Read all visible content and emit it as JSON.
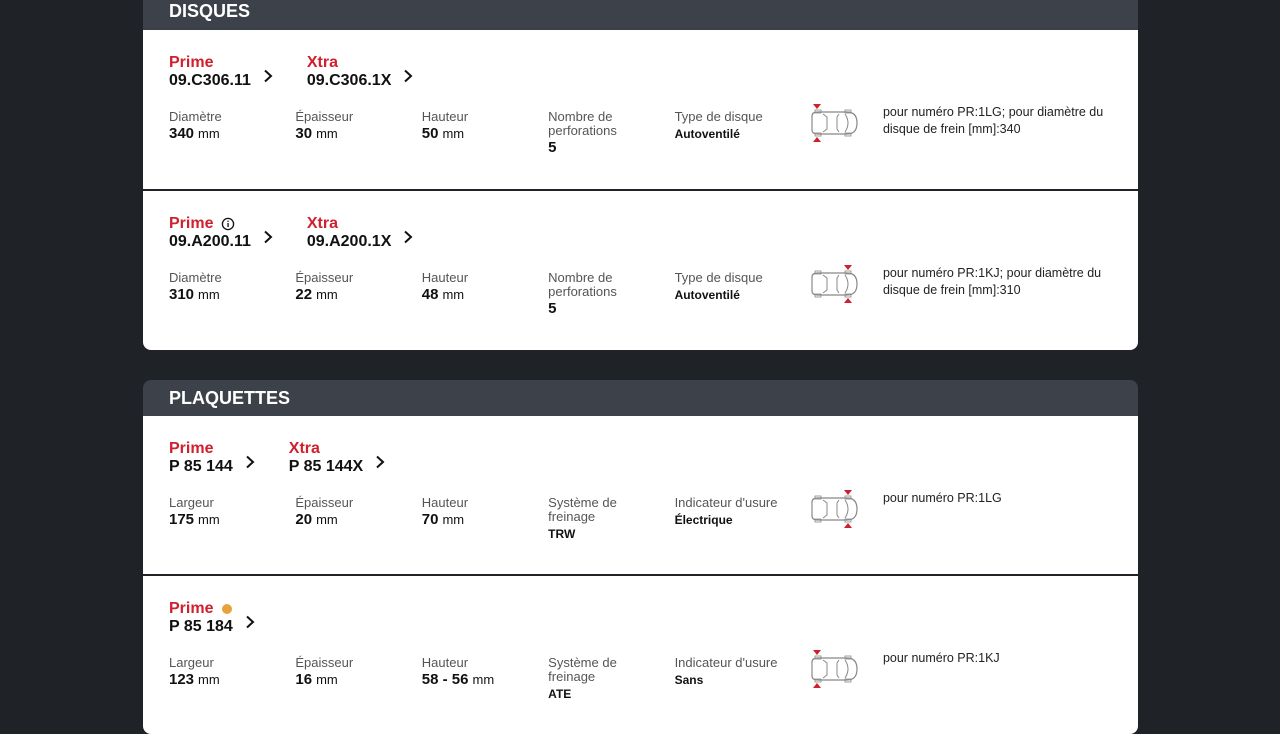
{
  "sections": [
    {
      "title": "DISQUES",
      "items": [
        {
          "refs": [
            {
              "brand": "Prime",
              "number": "09.C306.11"
            },
            {
              "brand": "Xtra",
              "number": "09.C306.1X"
            }
          ],
          "specs": [
            {
              "label": "Diamètre",
              "value": 340,
              "unit": "mm"
            },
            {
              "label": "Épaisseur",
              "value": 30,
              "unit": "mm"
            },
            {
              "label": "Hauteur",
              "value": 50,
              "unit": "mm"
            },
            {
              "label": "Nombre de perforations",
              "value": 5
            },
            {
              "label": "Type de disque",
              "value": "Autoventilé"
            }
          ],
          "note": "pour numéro PR:1LG; pour diamètre du disque de frein [mm]:340"
        },
        {
          "refs": [
            {
              "brand": "Prime",
              "number": "09.A200.11"
            },
            {
              "brand": "Xtra",
              "number": "09.A200.1X"
            }
          ],
          "specs": [
            {
              "label": "Diamètre",
              "value": 310,
              "unit": "mm"
            },
            {
              "label": "Épaisseur",
              "value": 22,
              "unit": "mm"
            },
            {
              "label": "Hauteur",
              "value": 48,
              "unit": "mm"
            },
            {
              "label": "Nombre de perforations",
              "value": 5
            },
            {
              "label": "Type de disque",
              "value": "Autoventilé"
            }
          ],
          "note": "pour numéro PR:1KJ; pour diamètre du disque de frein [mm]:310"
        }
      ]
    },
    {
      "title": "PLAQUETTES",
      "items": [
        {
          "refs": [
            {
              "brand": "Prime",
              "number": "P 85 144"
            },
            {
              "brand": "Xtra",
              "number": "P 85 144X"
            }
          ],
          "specs": [
            {
              "label": "Largeur",
              "value": 175,
              "unit": "mm"
            },
            {
              "label": "Épaisseur",
              "value": 20,
              "unit": "mm"
            },
            {
              "label": "Hauteur",
              "value": 70,
              "unit": "mm"
            },
            {
              "label": "Système de freinage",
              "value": "TRW"
            },
            {
              "label": "Indicateur d'usure",
              "value": "Électrique"
            }
          ],
          "note": "pour numéro PR:1LG"
        },
        {
          "refs": [
            {
              "brand": "Prime",
              "number": "P 85 184"
            }
          ],
          "specs": [
            {
              "label": "Largeur",
              "value": 123,
              "unit": "mm"
            },
            {
              "label": "Épaisseur",
              "value": 16,
              "unit": "mm"
            },
            {
              "label": "Hauteur",
              "value": "58 - 56",
              "unit": "mm"
            },
            {
              "label": "Système de freinage",
              "value": "ATE"
            },
            {
              "label": "Indicateur d'usure",
              "value": "Sans"
            }
          ],
          "note": "pour numéro PR:1KJ"
        }
      ]
    }
  ]
}
